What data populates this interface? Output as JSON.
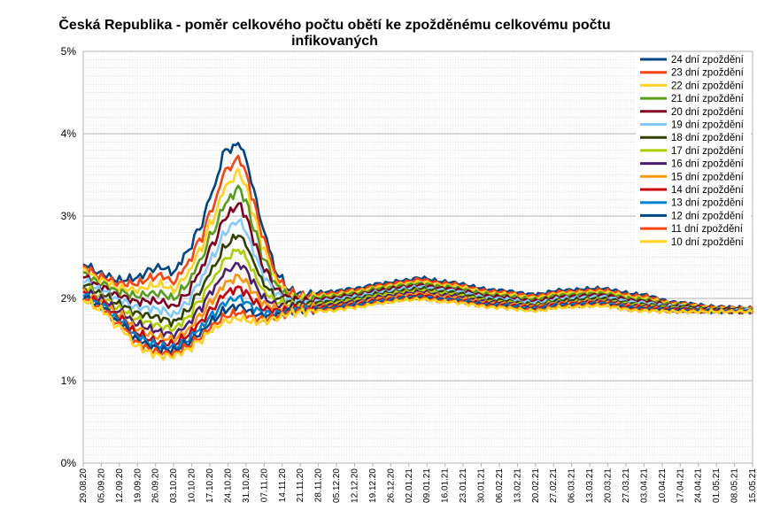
{
  "chart_data": {
    "type": "line",
    "title_lines": [
      "Česká Republika - poměr celkového počtu obětí ke zpožděnému celkovému počtu",
      "infikovaných"
    ],
    "xlabel": "",
    "ylabel": "",
    "ylim": [
      0,
      5
    ],
    "y_ticks": [
      {
        "value": 0,
        "label": "0%"
      },
      {
        "value": 1,
        "label": "1%"
      },
      {
        "value": 2,
        "label": "2%"
      },
      {
        "value": 3,
        "label": "3%"
      },
      {
        "value": 4,
        "label": "4%"
      },
      {
        "value": 5,
        "label": "5%"
      }
    ],
    "grid": true,
    "legend_position": "top-right",
    "x_range_days": [
      0,
      259
    ],
    "x_tick_labels": [
      "29.08.20",
      "05.09.20",
      "12.09.20",
      "19.09.20",
      "26.09.20",
      "03.10.20",
      "10.10.20",
      "17.10.20",
      "24.10.20",
      "31.10.20",
      "07.11.20",
      "14.11.20",
      "21.11.20",
      "28.11.20",
      "05.12.20",
      "12.12.20",
      "19.12.20",
      "26.12.20",
      "02.01.21",
      "09.01.21",
      "16.01.21",
      "23.01.21",
      "30.01.21",
      "06.02.21",
      "13.02.21",
      "20.02.21",
      "27.02.21",
      "06.03.21",
      "13.03.21",
      "20.03.21",
      "27.03.21",
      "03.04.21",
      "10.04.21",
      "17.04.21",
      "24.04.21",
      "01.05.21",
      "08.05.21",
      "15.05.21"
    ],
    "series": [
      {
        "name": "24 dní zpoždění",
        "color": "#004586",
        "delay": 24,
        "x": [
          0,
          7,
          14,
          21,
          26,
          30,
          35,
          40,
          45,
          50,
          55,
          58,
          60,
          63,
          66,
          70,
          75,
          80,
          85,
          95,
          105,
          115,
          125,
          130,
          140,
          160,
          175,
          185,
          200,
          215,
          230,
          245,
          259
        ],
        "y": [
          2.42,
          2.3,
          2.22,
          2.25,
          2.35,
          2.38,
          2.32,
          2.55,
          2.85,
          3.3,
          3.8,
          3.82,
          3.9,
          3.7,
          3.3,
          2.8,
          2.3,
          2.1,
          2.05,
          2.08,
          2.12,
          2.18,
          2.22,
          2.25,
          2.2,
          2.1,
          2.05,
          2.1,
          2.12,
          2.05,
          1.95,
          1.9,
          1.88
        ]
      },
      {
        "name": "23 dní zpoždění",
        "color": "#ff420e",
        "delay": 23,
        "x": [
          0,
          7,
          14,
          21,
          26,
          30,
          35,
          40,
          45,
          50,
          55,
          58,
          60,
          63,
          66,
          70,
          75,
          80,
          85,
          95,
          105,
          115,
          125,
          130,
          140,
          160,
          175,
          185,
          200,
          215,
          230,
          245,
          259
        ],
        "y": [
          2.38,
          2.26,
          2.18,
          2.18,
          2.25,
          2.28,
          2.2,
          2.4,
          2.7,
          3.1,
          3.55,
          3.62,
          3.72,
          3.52,
          3.15,
          2.7,
          2.25,
          2.07,
          2.03,
          2.06,
          2.1,
          2.16,
          2.2,
          2.23,
          2.18,
          2.08,
          2.03,
          2.08,
          2.1,
          2.03,
          1.94,
          1.89,
          1.88
        ]
      },
      {
        "name": "22 dní zpoždění",
        "color": "#ffd320",
        "delay": 22,
        "x": [
          0,
          7,
          14,
          21,
          26,
          30,
          35,
          40,
          45,
          50,
          55,
          58,
          60,
          63,
          66,
          70,
          75,
          80,
          85,
          95,
          105,
          115,
          125,
          130,
          140,
          160,
          175,
          185,
          200,
          215,
          230,
          245,
          259
        ],
        "y": [
          2.34,
          2.22,
          2.13,
          2.1,
          2.15,
          2.17,
          2.1,
          2.28,
          2.57,
          2.95,
          3.35,
          3.45,
          3.55,
          3.35,
          3.0,
          2.58,
          2.2,
          2.04,
          2.01,
          2.04,
          2.08,
          2.14,
          2.18,
          2.2,
          2.16,
          2.06,
          2.01,
          2.06,
          2.08,
          2.01,
          1.93,
          1.88,
          1.87
        ]
      },
      {
        "name": "21 dní zpoždění",
        "color": "#579d1c",
        "delay": 21,
        "x": [
          0,
          7,
          14,
          21,
          26,
          30,
          35,
          40,
          45,
          50,
          55,
          58,
          60,
          63,
          66,
          70,
          75,
          80,
          85,
          95,
          105,
          115,
          125,
          130,
          140,
          160,
          175,
          185,
          200,
          215,
          230,
          245,
          259
        ],
        "y": [
          2.3,
          2.18,
          2.08,
          2.03,
          2.06,
          2.06,
          2.0,
          2.16,
          2.44,
          2.8,
          3.15,
          3.26,
          3.35,
          3.18,
          2.85,
          2.47,
          2.15,
          2.02,
          1.99,
          2.02,
          2.06,
          2.12,
          2.16,
          2.18,
          2.14,
          2.04,
          1.99,
          2.04,
          2.06,
          1.99,
          1.92,
          1.87,
          1.87
        ]
      },
      {
        "name": "20 dní zpoždění",
        "color": "#7e0021",
        "delay": 20,
        "x": [
          0,
          7,
          14,
          21,
          26,
          30,
          35,
          40,
          45,
          50,
          55,
          58,
          60,
          63,
          66,
          70,
          75,
          80,
          85,
          95,
          105,
          115,
          125,
          130,
          140,
          160,
          175,
          185,
          200,
          215,
          230,
          245,
          259
        ],
        "y": [
          2.26,
          2.14,
          2.03,
          1.96,
          1.97,
          1.96,
          1.9,
          2.05,
          2.32,
          2.65,
          2.98,
          3.08,
          3.15,
          3.0,
          2.7,
          2.36,
          2.1,
          2.0,
          1.97,
          2.0,
          2.04,
          2.1,
          2.14,
          2.16,
          2.12,
          2.02,
          1.97,
          2.02,
          2.04,
          1.97,
          1.91,
          1.87,
          1.86
        ]
      },
      {
        "name": "19 dní zpoždění",
        "color": "#83caff",
        "delay": 19,
        "x": [
          0,
          7,
          14,
          21,
          26,
          30,
          35,
          40,
          45,
          50,
          55,
          58,
          60,
          63,
          66,
          70,
          75,
          80,
          85,
          95,
          105,
          115,
          125,
          130,
          140,
          160,
          175,
          185,
          200,
          215,
          230,
          245,
          259
        ],
        "y": [
          2.22,
          2.1,
          1.98,
          1.89,
          1.88,
          1.86,
          1.8,
          1.94,
          2.2,
          2.5,
          2.8,
          2.9,
          2.95,
          2.82,
          2.56,
          2.26,
          2.05,
          1.97,
          1.95,
          1.98,
          2.02,
          2.08,
          2.12,
          2.14,
          2.1,
          2.0,
          1.95,
          2.0,
          2.02,
          1.95,
          1.9,
          1.86,
          1.86
        ]
      },
      {
        "name": "18 dní zpoždění",
        "color": "#314004",
        "delay": 18,
        "x": [
          0,
          7,
          14,
          21,
          26,
          30,
          35,
          40,
          45,
          50,
          55,
          58,
          60,
          63,
          66,
          70,
          75,
          80,
          85,
          95,
          105,
          115,
          125,
          130,
          140,
          160,
          175,
          185,
          200,
          215,
          230,
          245,
          259
        ],
        "y": [
          2.18,
          2.06,
          1.93,
          1.82,
          1.79,
          1.76,
          1.71,
          1.84,
          2.08,
          2.36,
          2.63,
          2.72,
          2.78,
          2.66,
          2.43,
          2.17,
          2.0,
          1.95,
          1.93,
          1.96,
          2.0,
          2.06,
          2.1,
          2.12,
          2.08,
          1.98,
          1.93,
          1.98,
          2.0,
          1.93,
          1.89,
          1.86,
          1.85
        ]
      },
      {
        "name": "17 dní zpoždění",
        "color": "#aecf00",
        "delay": 17,
        "x": [
          0,
          7,
          14,
          21,
          26,
          30,
          35,
          40,
          45,
          50,
          55,
          58,
          60,
          63,
          66,
          70,
          75,
          80,
          85,
          95,
          105,
          115,
          125,
          130,
          140,
          160,
          175,
          185,
          200,
          215,
          230,
          245,
          259
        ],
        "y": [
          2.14,
          2.02,
          1.88,
          1.75,
          1.7,
          1.66,
          1.63,
          1.75,
          1.97,
          2.22,
          2.47,
          2.55,
          2.6,
          2.5,
          2.3,
          2.08,
          1.96,
          1.92,
          1.91,
          1.94,
          1.98,
          2.04,
          2.08,
          2.1,
          2.06,
          1.96,
          1.92,
          1.96,
          1.98,
          1.92,
          1.88,
          1.85,
          1.85
        ]
      },
      {
        "name": "16 dní zpoždění",
        "color": "#4b1f6f",
        "delay": 16,
        "x": [
          0,
          7,
          14,
          21,
          26,
          30,
          35,
          40,
          45,
          50,
          55,
          58,
          60,
          63,
          66,
          70,
          75,
          80,
          85,
          95,
          105,
          115,
          125,
          130,
          140,
          160,
          175,
          185,
          200,
          215,
          230,
          245,
          259
        ],
        "y": [
          2.11,
          1.99,
          1.84,
          1.69,
          1.63,
          1.59,
          1.56,
          1.67,
          1.87,
          2.1,
          2.32,
          2.38,
          2.42,
          2.35,
          2.18,
          2.0,
          1.92,
          1.9,
          1.9,
          1.92,
          1.96,
          2.02,
          2.06,
          2.08,
          2.04,
          1.95,
          1.91,
          1.95,
          1.97,
          1.91,
          1.87,
          1.85,
          1.85
        ]
      },
      {
        "name": "15 dní zpoždění",
        "color": "#ff950e",
        "delay": 15,
        "x": [
          0,
          7,
          14,
          21,
          26,
          30,
          35,
          40,
          45,
          50,
          55,
          58,
          60,
          63,
          66,
          70,
          75,
          80,
          85,
          95,
          105,
          115,
          125,
          130,
          140,
          160,
          175,
          185,
          200,
          215,
          230,
          245,
          259
        ],
        "y": [
          2.08,
          1.96,
          1.8,
          1.63,
          1.56,
          1.52,
          1.5,
          1.6,
          1.78,
          1.98,
          2.18,
          2.23,
          2.27,
          2.2,
          2.07,
          1.93,
          1.88,
          1.88,
          1.89,
          1.9,
          1.94,
          2.0,
          2.04,
          2.06,
          2.02,
          1.94,
          1.9,
          1.94,
          1.96,
          1.9,
          1.86,
          1.84,
          1.84
        ]
      },
      {
        "name": "14 dní zpoždění",
        "color": "#c5000b",
        "delay": 14,
        "x": [
          0,
          7,
          14,
          21,
          26,
          30,
          35,
          40,
          45,
          50,
          55,
          58,
          60,
          63,
          66,
          70,
          75,
          80,
          85,
          95,
          105,
          115,
          125,
          130,
          140,
          160,
          175,
          185,
          200,
          215,
          230,
          245,
          259
        ],
        "y": [
          2.06,
          1.94,
          1.77,
          1.58,
          1.5,
          1.46,
          1.45,
          1.54,
          1.7,
          1.88,
          2.06,
          2.1,
          2.13,
          2.07,
          1.97,
          1.87,
          1.85,
          1.86,
          1.88,
          1.89,
          1.93,
          1.98,
          2.02,
          2.04,
          2.0,
          1.93,
          1.89,
          1.93,
          1.95,
          1.89,
          1.86,
          1.84,
          1.84
        ]
      },
      {
        "name": "13 dní zpoždění",
        "color": "#0084d1",
        "delay": 13,
        "x": [
          0,
          7,
          14,
          21,
          26,
          30,
          35,
          40,
          45,
          50,
          55,
          58,
          60,
          63,
          66,
          70,
          75,
          80,
          85,
          95,
          105,
          115,
          125,
          130,
          140,
          160,
          175,
          185,
          200,
          215,
          230,
          245,
          259
        ],
        "y": [
          2.04,
          1.92,
          1.74,
          1.54,
          1.46,
          1.42,
          1.41,
          1.49,
          1.63,
          1.8,
          1.95,
          1.99,
          2.01,
          1.96,
          1.88,
          1.82,
          1.82,
          1.85,
          1.87,
          1.88,
          1.92,
          1.97,
          2.01,
          2.02,
          1.99,
          1.92,
          1.88,
          1.92,
          1.94,
          1.88,
          1.85,
          1.84,
          1.84
        ]
      },
      {
        "name": "12 dní zpoždění",
        "color": "#004586",
        "delay": 12,
        "x": [
          0,
          7,
          14,
          21,
          26,
          30,
          35,
          40,
          45,
          50,
          55,
          58,
          60,
          63,
          66,
          70,
          75,
          80,
          85,
          95,
          105,
          115,
          125,
          130,
          140,
          160,
          175,
          185,
          200,
          215,
          230,
          245,
          259
        ],
        "y": [
          2.02,
          1.9,
          1.71,
          1.5,
          1.42,
          1.38,
          1.37,
          1.45,
          1.57,
          1.73,
          1.86,
          1.89,
          1.91,
          1.87,
          1.81,
          1.78,
          1.8,
          1.84,
          1.86,
          1.87,
          1.91,
          1.96,
          2.0,
          2.01,
          1.98,
          1.91,
          1.87,
          1.91,
          1.93,
          1.87,
          1.85,
          1.84,
          1.84
        ]
      },
      {
        "name": "11 dní zpoždění",
        "color": "#ff420e",
        "delay": 11,
        "x": [
          0,
          7,
          14,
          21,
          26,
          30,
          35,
          40,
          45,
          50,
          55,
          58,
          60,
          63,
          66,
          70,
          75,
          80,
          85,
          95,
          105,
          115,
          125,
          130,
          140,
          160,
          175,
          185,
          200,
          215,
          230,
          245,
          259
        ],
        "y": [
          2.0,
          1.88,
          1.68,
          1.46,
          1.38,
          1.34,
          1.33,
          1.41,
          1.52,
          1.67,
          1.78,
          1.81,
          1.83,
          1.8,
          1.76,
          1.75,
          1.78,
          1.83,
          1.85,
          1.86,
          1.9,
          1.95,
          1.99,
          2.0,
          1.97,
          1.9,
          1.86,
          1.9,
          1.92,
          1.86,
          1.84,
          1.84,
          1.84
        ]
      },
      {
        "name": "10 dní zpoždění",
        "color": "#ffd320",
        "delay": 10,
        "x": [
          0,
          7,
          14,
          21,
          26,
          30,
          35,
          40,
          45,
          50,
          55,
          58,
          60,
          63,
          66,
          70,
          75,
          80,
          85,
          95,
          105,
          115,
          125,
          130,
          140,
          160,
          175,
          185,
          200,
          215,
          230,
          245,
          259
        ],
        "y": [
          1.98,
          1.86,
          1.65,
          1.42,
          1.34,
          1.3,
          1.3,
          1.37,
          1.48,
          1.62,
          1.72,
          1.74,
          1.76,
          1.74,
          1.71,
          1.72,
          1.76,
          1.82,
          1.84,
          1.85,
          1.89,
          1.94,
          1.98,
          1.99,
          1.96,
          1.89,
          1.85,
          1.89,
          1.91,
          1.85,
          1.84,
          1.84,
          1.84
        ]
      }
    ]
  }
}
